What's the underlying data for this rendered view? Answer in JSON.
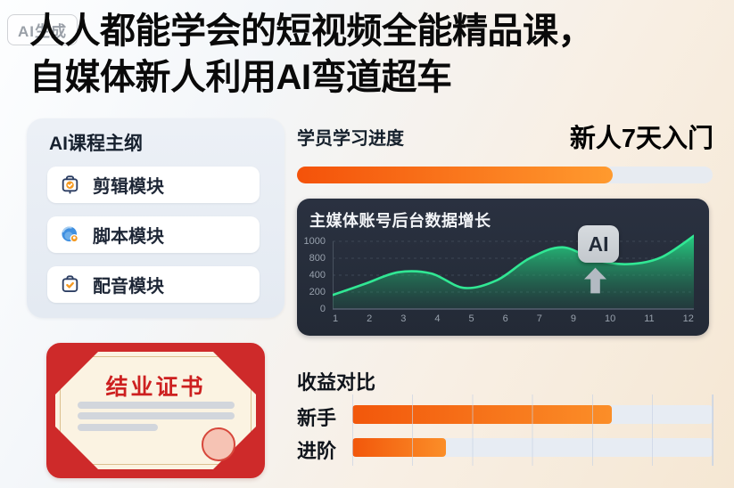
{
  "watermark": {
    "label": "AI生成"
  },
  "title": {
    "line1": "人人都能学会的短视频全能精品课，",
    "line2": "自媒体新人利用AI弯道超车"
  },
  "course_outline": {
    "title": "AI课程主纲",
    "modules": [
      {
        "label": "剪辑模块",
        "icon": "clipboard-check-icon"
      },
      {
        "label": "脚本模块",
        "icon": "globe-pin-icon"
      },
      {
        "label": "配音模块",
        "icon": "briefcase-check-icon"
      }
    ]
  },
  "progress": {
    "label": "学员学习进度",
    "highlight": "新人7天入门",
    "percent": 76,
    "fill_color_start": "#f4520a",
    "fill_color_end": "#ff9a2e",
    "track_color": "#e7ebf1"
  },
  "chart_data": {
    "type": "area",
    "title": "主媒体账号后台数据增长",
    "x": [
      1,
      2,
      3,
      4,
      5,
      6,
      7,
      8,
      9,
      10,
      11,
      12
    ],
    "x_tick_labels": [
      "1",
      "2",
      "3",
      "4",
      "5",
      "6",
      "7",
      "9",
      "10",
      "11",
      "12"
    ],
    "y_tick_labels": [
      "1000",
      "800",
      "400",
      "200",
      "0"
    ],
    "series": [
      {
        "name": "账号后台数据",
        "values": [
          165,
          300,
          470,
          440,
          250,
          340,
          800,
          930,
          760,
          660,
          810,
          1065
        ]
      }
    ],
    "ylim": [
      0,
      1100
    ],
    "grid": "dashed-horizontal",
    "legend": "none",
    "annotation": {
      "label": "AI",
      "arrow": "up",
      "x_position": 9
    },
    "line_color": "#31e794",
    "fill_color": "#25d585",
    "panel_bg": "#232a36"
  },
  "earnings": {
    "title": "收益对比",
    "type": "bar",
    "bars": [
      {
        "label": "新手",
        "percent": 72
      },
      {
        "label": "进阶",
        "percent": 26
      }
    ],
    "bar_color_start": "#f2570b",
    "bar_color_end": "#fb8e28",
    "track_color": "#e7ecf3"
  },
  "certificate": {
    "title": "结业证书"
  }
}
